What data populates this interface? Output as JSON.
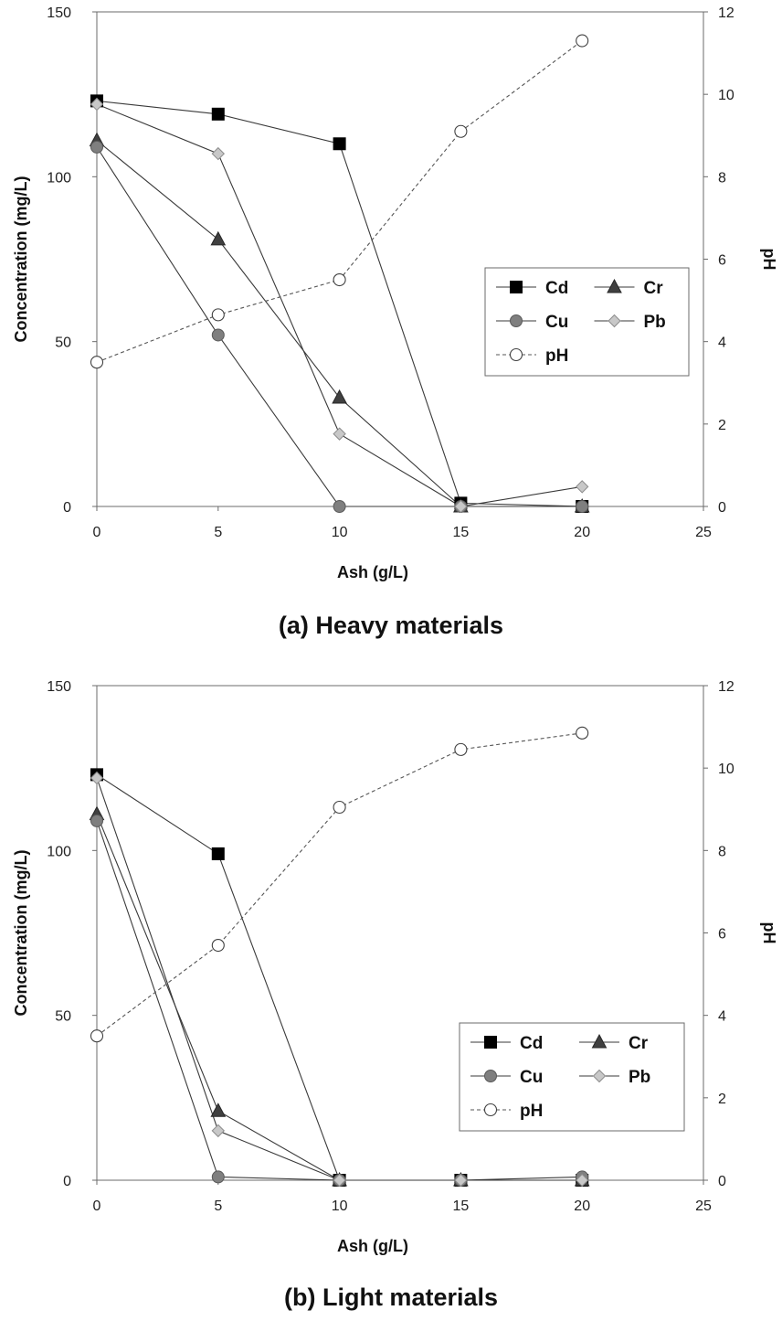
{
  "chart_data": [
    {
      "type": "line",
      "caption": "(a) Heavy materials",
      "xlabel": "Ash (g/L)",
      "ylabel": "Concentration (mg/L)",
      "y2label": "pH",
      "xlim": [
        0,
        25
      ],
      "ylim": [
        0,
        150
      ],
      "y2lim": [
        0,
        12
      ],
      "xticks": [
        0,
        5,
        10,
        15,
        20,
        25
      ],
      "yticks": [
        0,
        50,
        100,
        150
      ],
      "y2ticks": [
        0,
        2,
        4,
        6,
        8,
        10,
        12
      ],
      "grid": false,
      "legend_position": "right",
      "series": [
        {
          "name": "Cd",
          "axis": "left",
          "marker": "square",
          "color": "#000000",
          "line": "solid",
          "x": [
            0,
            5,
            10,
            15,
            20
          ],
          "values": [
            123,
            119,
            110,
            1,
            0
          ]
        },
        {
          "name": "Cr",
          "axis": "left",
          "marker": "triangle",
          "color": "#404040",
          "line": "solid",
          "x": [
            0,
            5,
            10,
            15,
            20
          ],
          "values": [
            111,
            81,
            33,
            0,
            0
          ]
        },
        {
          "name": "Cu",
          "axis": "left",
          "marker": "circle",
          "color": "#7f7f7f",
          "line": "solid",
          "x": [
            0,
            5,
            10,
            15,
            20
          ],
          "values": [
            109,
            52,
            0,
            0,
            0
          ]
        },
        {
          "name": "Pb",
          "axis": "left",
          "marker": "diamond",
          "color": "#c0c0c0",
          "line": "solid",
          "x": [
            0,
            5,
            10,
            15,
            20
          ],
          "values": [
            122,
            107,
            22,
            0,
            6
          ]
        },
        {
          "name": "pH",
          "axis": "right",
          "marker": "open-circle",
          "color": "#ffffff",
          "line": "dashed",
          "x": [
            0,
            5,
            10,
            15,
            20
          ],
          "values": [
            3.5,
            4.65,
            5.5,
            9.1,
            11.3
          ]
        }
      ]
    },
    {
      "type": "line",
      "caption": "(b) Light materials",
      "xlabel": "Ash (g/L)",
      "ylabel": "Concentration (mg/L)",
      "y2label": "pH",
      "xlim": [
        0,
        25
      ],
      "ylim": [
        0,
        150
      ],
      "y2lim": [
        0,
        12
      ],
      "xticks": [
        0,
        5,
        10,
        15,
        20,
        25
      ],
      "yticks": [
        0,
        50,
        100,
        150
      ],
      "y2ticks": [
        0,
        2,
        4,
        6,
        8,
        10,
        12
      ],
      "grid": false,
      "legend_position": "bottom-right",
      "series": [
        {
          "name": "Cd",
          "axis": "left",
          "marker": "square",
          "color": "#000000",
          "line": "solid",
          "x": [
            0,
            5,
            10,
            15,
            20
          ],
          "values": [
            123,
            99,
            0,
            0,
            0
          ]
        },
        {
          "name": "Cr",
          "axis": "left",
          "marker": "triangle",
          "color": "#404040",
          "line": "solid",
          "x": [
            0,
            5,
            10,
            15,
            20
          ],
          "values": [
            111,
            21,
            0,
            0,
            0
          ]
        },
        {
          "name": "Cu",
          "axis": "left",
          "marker": "circle",
          "color": "#7f7f7f",
          "line": "solid",
          "x": [
            0,
            5,
            10,
            15,
            20
          ],
          "values": [
            109,
            1,
            0,
            0,
            1
          ]
        },
        {
          "name": "Pb",
          "axis": "left",
          "marker": "diamond",
          "color": "#c0c0c0",
          "line": "solid",
          "x": [
            0,
            5,
            10,
            15,
            20
          ],
          "values": [
            122,
            15,
            0,
            0,
            0
          ]
        },
        {
          "name": "pH",
          "axis": "right",
          "marker": "open-circle",
          "color": "#ffffff",
          "line": "dashed",
          "x": [
            0,
            5,
            10,
            15,
            20
          ],
          "values": [
            3.5,
            5.7,
            9.05,
            10.45,
            10.85
          ]
        }
      ]
    }
  ]
}
